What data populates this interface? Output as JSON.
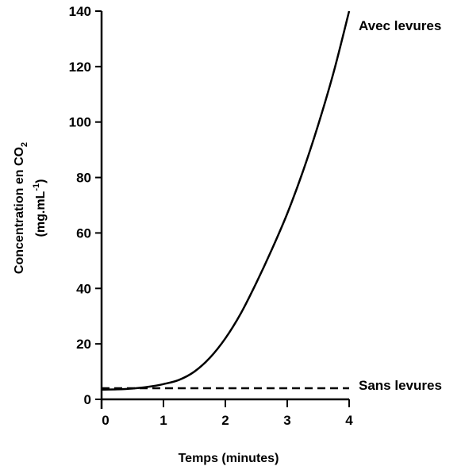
{
  "chart_data": {
    "type": "line",
    "title": "",
    "xlabel": "Temps (minutes)",
    "ylabel": {
      "line1_prefix": "Concentration en CO",
      "line1_subscript": "2",
      "line2_prefix": "(mg.mL",
      "line2_superscript": "-1",
      "line2_suffix": ")"
    },
    "xlim": [
      0,
      4
    ],
    "ylim": [
      0,
      140
    ],
    "xticks": [
      0,
      1,
      2,
      3,
      4
    ],
    "yticks": [
      0,
      20,
      40,
      60,
      80,
      100,
      120,
      140
    ],
    "grid": false,
    "series": [
      {
        "name": "Avec levures",
        "style": "solid",
        "color": "#000000",
        "x": [
          0,
          0.25,
          0.5,
          0.75,
          1.0,
          1.25,
          1.5,
          1.75,
          2.0,
          2.25,
          2.5,
          2.75,
          3.0,
          3.25,
          3.5,
          3.75,
          4.0
        ],
        "y": [
          3.5,
          3.6,
          3.9,
          4.5,
          5.5,
          7,
          10,
          15,
          22,
          31,
          42,
          54,
          67,
          82,
          99,
          118,
          140
        ]
      },
      {
        "name": "Sans levures",
        "style": "dashed",
        "color": "#000000",
        "x": [
          0,
          4.0
        ],
        "y": [
          4,
          4
        ]
      }
    ]
  }
}
